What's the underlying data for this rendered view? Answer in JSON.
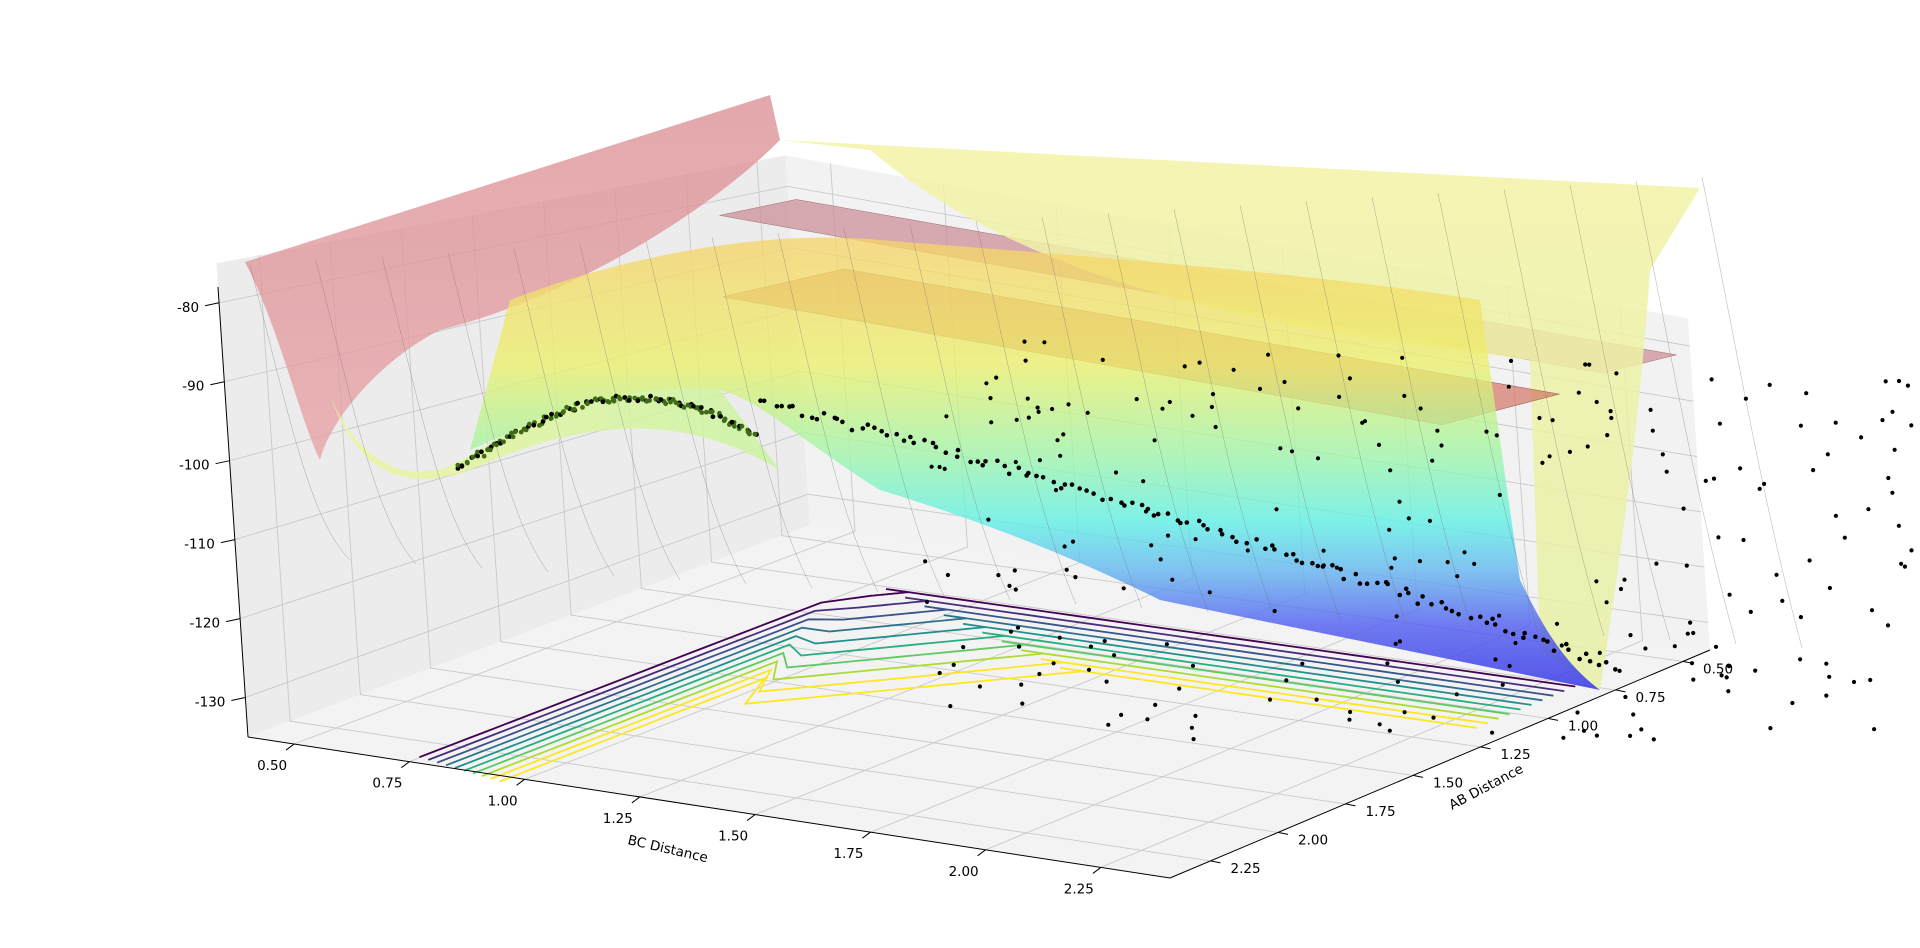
{
  "chart_data": {
    "type": "surface3d",
    "title": "",
    "xlabel": "BC Distance",
    "ylabel": "AB Distance",
    "zlabel": "",
    "x_ticks": [
      "0.50",
      "0.75",
      "1.00",
      "1.25",
      "1.50",
      "1.75",
      "2.00",
      "2.25"
    ],
    "y_ticks": [
      "0.50",
      "0.75",
      "1.00",
      "1.25",
      "1.50",
      "1.75",
      "2.00",
      "2.25"
    ],
    "z_ticks": [
      "-80",
      "-90",
      "-100",
      "-110",
      "-120",
      "-130"
    ],
    "xlim": [
      0.4,
      2.4
    ],
    "ylim": [
      0.4,
      2.4
    ],
    "zlim": [
      -135,
      -78
    ],
    "grid": true,
    "surfaces": [
      {
        "kind": "potential-energy-surface",
        "colormap": "jet",
        "plateau_z": -81,
        "minimum_z": -133
      },
      {
        "kind": "secondary-surface",
        "colormap": "jet",
        "plateau_z": -86,
        "minimum_z": -128
      }
    ],
    "contour_projection": {
      "z_offset": -135,
      "colormap": "viridis",
      "levels": 10
    },
    "scatter": {
      "color": "#000000",
      "description_points": "trajectory"
    }
  },
  "colors": {
    "pane": "#f2f2f2",
    "pane_side": "#ececec",
    "grid": "#c9c9c9",
    "scatter": "#000000"
  }
}
